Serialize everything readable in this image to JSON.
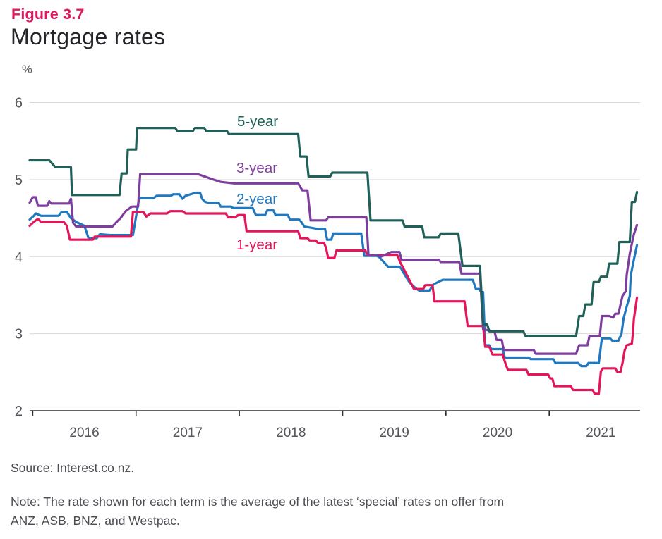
{
  "figure_label": "Figure 3.7",
  "title": "Mortgage rates",
  "y_axis_unit": "%",
  "source": "Source: Interest.co.nz.",
  "note_lines": [
    "Note: The rate shown for each term is the average of the latest ‘special’ rates on offer from",
    "ANZ, ASB, BNZ, and Westpac."
  ],
  "colors": {
    "accent_pink": "#e0175f",
    "title_dark": "#26242b",
    "axis_text": "#55555b",
    "axis_line": "#2e2e33",
    "gridline": "#dadada"
  },
  "chart_data": {
    "type": "line",
    "title": "Mortgage rates",
    "xlabel": "",
    "ylabel": "%",
    "grid": "horizontal",
    "legend_position": "inline-labels",
    "xlim": [
      2015.97,
      2021.88
    ],
    "ylim": [
      2,
      6
    ],
    "x_ticks": [
      2016,
      2017,
      2018,
      2019,
      2020,
      2021
    ],
    "x_tick_labels": [
      "2016",
      "2017",
      "2018",
      "2019",
      "2020",
      "2021"
    ],
    "y_ticks": [
      2,
      3,
      4,
      5,
      6
    ],
    "series": [
      {
        "name": "2-year",
        "color": "#2079c0",
        "points": [
          [
            2015.97,
            4.48
          ],
          [
            2016.01,
            4.53
          ],
          [
            2016.03,
            4.56
          ],
          [
            2016.08,
            4.53
          ],
          [
            2016.25,
            4.53
          ],
          [
            2016.28,
            4.58
          ],
          [
            2016.33,
            4.58
          ],
          [
            2016.37,
            4.5
          ],
          [
            2016.42,
            4.45
          ],
          [
            2016.5,
            4.4
          ],
          [
            2016.54,
            4.24
          ],
          [
            2016.62,
            4.24
          ],
          [
            2016.65,
            4.29
          ],
          [
            2016.75,
            4.28
          ],
          [
            2016.97,
            4.28
          ],
          [
            2017.03,
            4.76
          ],
          [
            2017.17,
            4.76
          ],
          [
            2017.2,
            4.79
          ],
          [
            2017.34,
            4.79
          ],
          [
            2017.36,
            4.81
          ],
          [
            2017.42,
            4.81
          ],
          [
            2017.45,
            4.75
          ],
          [
            2017.48,
            4.79
          ],
          [
            2017.58,
            4.83
          ],
          [
            2017.62,
            4.83
          ],
          [
            2017.64,
            4.75
          ],
          [
            2017.67,
            4.71
          ],
          [
            2017.7,
            4.7
          ],
          [
            2017.8,
            4.7
          ],
          [
            2017.82,
            4.65
          ],
          [
            2017.92,
            4.65
          ],
          [
            2017.94,
            4.63
          ],
          [
            2018.13,
            4.63
          ],
          [
            2018.16,
            4.54
          ],
          [
            2018.25,
            4.54
          ],
          [
            2018.27,
            4.6
          ],
          [
            2018.33,
            4.6
          ],
          [
            2018.35,
            4.54
          ],
          [
            2018.47,
            4.54
          ],
          [
            2018.49,
            4.48
          ],
          [
            2018.58,
            4.48
          ],
          [
            2018.6,
            4.45
          ],
          [
            2018.63,
            4.39
          ],
          [
            2018.76,
            4.36
          ],
          [
            2018.83,
            4.36
          ],
          [
            2018.85,
            4.22
          ],
          [
            2018.89,
            4.22
          ],
          [
            2018.91,
            4.3
          ],
          [
            2019.18,
            4.3
          ],
          [
            2019.21,
            4.01
          ],
          [
            2019.33,
            4.01
          ],
          [
            2019.35,
            4.0
          ],
          [
            2019.44,
            3.87
          ],
          [
            2019.55,
            3.87
          ],
          [
            2019.57,
            3.84
          ],
          [
            2019.58,
            3.81
          ],
          [
            2019.65,
            3.66
          ],
          [
            2019.7,
            3.6
          ],
          [
            2019.74,
            3.56
          ],
          [
            2019.84,
            3.56
          ],
          [
            2019.88,
            3.64
          ],
          [
            2019.97,
            3.7
          ],
          [
            2020.26,
            3.7
          ],
          [
            2020.29,
            3.58
          ],
          [
            2020.32,
            3.58
          ],
          [
            2020.34,
            3.54
          ],
          [
            2020.36,
            3.54
          ],
          [
            2020.38,
            2.85
          ],
          [
            2020.42,
            2.85
          ],
          [
            2020.44,
            2.8
          ],
          [
            2020.55,
            2.8
          ],
          [
            2020.57,
            2.69
          ],
          [
            2020.8,
            2.69
          ],
          [
            2020.82,
            2.67
          ],
          [
            2021.04,
            2.67
          ],
          [
            2021.06,
            2.62
          ],
          [
            2021.28,
            2.62
          ],
          [
            2021.31,
            2.58
          ],
          [
            2021.36,
            2.58
          ],
          [
            2021.38,
            2.62
          ],
          [
            2021.48,
            2.62
          ],
          [
            2021.51,
            2.94
          ],
          [
            2021.59,
            2.94
          ],
          [
            2021.61,
            2.91
          ],
          [
            2021.67,
            2.91
          ],
          [
            2021.7,
            3.0
          ],
          [
            2021.72,
            3.2
          ],
          [
            2021.75,
            3.35
          ],
          [
            2021.78,
            3.49
          ],
          [
            2021.79,
            3.76
          ],
          [
            2021.82,
            3.96
          ],
          [
            2021.85,
            4.15
          ]
        ]
      },
      {
        "name": "1-year",
        "color": "#e41659",
        "points": [
          [
            2015.97,
            4.4
          ],
          [
            2016.01,
            4.45
          ],
          [
            2016.05,
            4.49
          ],
          [
            2016.08,
            4.45
          ],
          [
            2016.3,
            4.45
          ],
          [
            2016.33,
            4.4
          ],
          [
            2016.36,
            4.22
          ],
          [
            2016.58,
            4.22
          ],
          [
            2016.6,
            4.26
          ],
          [
            2016.95,
            4.26
          ],
          [
            2016.97,
            4.58
          ],
          [
            2017.07,
            4.58
          ],
          [
            2017.1,
            4.52
          ],
          [
            2017.14,
            4.56
          ],
          [
            2017.3,
            4.56
          ],
          [
            2017.33,
            4.59
          ],
          [
            2017.45,
            4.59
          ],
          [
            2017.48,
            4.56
          ],
          [
            2017.87,
            4.56
          ],
          [
            2017.89,
            4.51
          ],
          [
            2017.96,
            4.51
          ],
          [
            2017.99,
            4.54
          ],
          [
            2018.05,
            4.54
          ],
          [
            2018.07,
            4.33
          ],
          [
            2018.57,
            4.33
          ],
          [
            2018.59,
            4.24
          ],
          [
            2018.66,
            4.24
          ],
          [
            2018.68,
            4.21
          ],
          [
            2018.74,
            4.21
          ],
          [
            2018.76,
            4.18
          ],
          [
            2018.82,
            4.18
          ],
          [
            2018.84,
            4.11
          ],
          [
            2018.86,
            3.98
          ],
          [
            2018.92,
            3.98
          ],
          [
            2018.94,
            4.08
          ],
          [
            2019.22,
            4.08
          ],
          [
            2019.24,
            4.02
          ],
          [
            2019.53,
            4.02
          ],
          [
            2019.56,
            3.92
          ],
          [
            2019.58,
            3.87
          ],
          [
            2019.63,
            3.74
          ],
          [
            2019.69,
            3.58
          ],
          [
            2019.78,
            3.58
          ],
          [
            2019.8,
            3.63
          ],
          [
            2019.87,
            3.63
          ],
          [
            2019.89,
            3.42
          ],
          [
            2020.18,
            3.42
          ],
          [
            2020.21,
            3.1
          ],
          [
            2020.36,
            3.1
          ],
          [
            2020.38,
            2.83
          ],
          [
            2020.42,
            2.83
          ],
          [
            2020.45,
            2.73
          ],
          [
            2020.55,
            2.73
          ],
          [
            2020.57,
            2.64
          ],
          [
            2020.58,
            2.6
          ],
          [
            2020.6,
            2.53
          ],
          [
            2020.78,
            2.53
          ],
          [
            2020.8,
            2.47
          ],
          [
            2020.99,
            2.47
          ],
          [
            2021.01,
            2.42
          ],
          [
            2021.03,
            2.42
          ],
          [
            2021.05,
            2.32
          ],
          [
            2021.21,
            2.32
          ],
          [
            2021.23,
            2.27
          ],
          [
            2021.42,
            2.27
          ],
          [
            2021.44,
            2.22
          ],
          [
            2021.48,
            2.22
          ],
          [
            2021.5,
            2.51
          ],
          [
            2021.52,
            2.55
          ],
          [
            2021.64,
            2.55
          ],
          [
            2021.66,
            2.5
          ],
          [
            2021.69,
            2.5
          ],
          [
            2021.71,
            2.62
          ],
          [
            2021.73,
            2.78
          ],
          [
            2021.75,
            2.85
          ],
          [
            2021.8,
            2.87
          ],
          [
            2021.81,
            3.0
          ],
          [
            2021.82,
            3.19
          ],
          [
            2021.85,
            3.47
          ]
        ]
      },
      {
        "name": "3-year",
        "color": "#7d3e9e",
        "points": [
          [
            2015.97,
            4.7
          ],
          [
            2016.0,
            4.77
          ],
          [
            2016.03,
            4.77
          ],
          [
            2016.05,
            4.66
          ],
          [
            2016.14,
            4.66
          ],
          [
            2016.16,
            4.72
          ],
          [
            2016.18,
            4.69
          ],
          [
            2016.35,
            4.69
          ],
          [
            2016.37,
            4.75
          ],
          [
            2016.39,
            4.44
          ],
          [
            2016.42,
            4.39
          ],
          [
            2016.77,
            4.39
          ],
          [
            2016.82,
            4.46
          ],
          [
            2016.85,
            4.5
          ],
          [
            2016.9,
            4.59
          ],
          [
            2016.96,
            4.65
          ],
          [
            2017.02,
            4.65
          ],
          [
            2017.04,
            5.07
          ],
          [
            2017.6,
            5.07
          ],
          [
            2017.75,
            5.0
          ],
          [
            2017.82,
            4.97
          ],
          [
            2017.95,
            4.95
          ],
          [
            2018.57,
            4.95
          ],
          [
            2018.61,
            4.86
          ],
          [
            2018.66,
            4.86
          ],
          [
            2018.69,
            4.47
          ],
          [
            2018.84,
            4.47
          ],
          [
            2018.86,
            4.51
          ],
          [
            2019.23,
            4.51
          ],
          [
            2019.25,
            4.02
          ],
          [
            2019.35,
            4.02
          ],
          [
            2019.37,
            4.0
          ],
          [
            2019.47,
            4.06
          ],
          [
            2019.55,
            4.06
          ],
          [
            2019.57,
            3.96
          ],
          [
            2019.93,
            3.96
          ],
          [
            2019.95,
            3.93
          ],
          [
            2020.13,
            3.93
          ],
          [
            2020.15,
            3.78
          ],
          [
            2020.33,
            3.78
          ],
          [
            2020.36,
            3.06
          ],
          [
            2020.45,
            3.03
          ],
          [
            2020.47,
            3.03
          ],
          [
            2020.49,
            2.92
          ],
          [
            2020.54,
            2.92
          ],
          [
            2020.56,
            2.79
          ],
          [
            2020.85,
            2.79
          ],
          [
            2020.87,
            2.74
          ],
          [
            2021.26,
            2.74
          ],
          [
            2021.29,
            2.85
          ],
          [
            2021.37,
            2.85
          ],
          [
            2021.39,
            2.97
          ],
          [
            2021.49,
            2.97
          ],
          [
            2021.51,
            3.23
          ],
          [
            2021.58,
            3.23
          ],
          [
            2021.62,
            3.21
          ],
          [
            2021.64,
            3.26
          ],
          [
            2021.67,
            3.26
          ],
          [
            2021.71,
            3.49
          ],
          [
            2021.74,
            3.55
          ],
          [
            2021.75,
            3.76
          ],
          [
            2021.78,
            4.04
          ],
          [
            2021.82,
            4.29
          ],
          [
            2021.85,
            4.41
          ]
        ]
      },
      {
        "name": "5-year",
        "color": "#1f6158",
        "points": [
          [
            2015.97,
            5.25
          ],
          [
            2016.16,
            5.25
          ],
          [
            2016.22,
            5.16
          ],
          [
            2016.37,
            5.16
          ],
          [
            2016.38,
            4.8
          ],
          [
            2016.84,
            4.8
          ],
          [
            2016.86,
            5.08
          ],
          [
            2016.91,
            5.08
          ],
          [
            2016.92,
            5.39
          ],
          [
            2017.0,
            5.39
          ],
          [
            2017.01,
            5.67
          ],
          [
            2017.38,
            5.67
          ],
          [
            2017.4,
            5.63
          ],
          [
            2017.55,
            5.63
          ],
          [
            2017.57,
            5.67
          ],
          [
            2017.66,
            5.67
          ],
          [
            2017.68,
            5.63
          ],
          [
            2017.88,
            5.63
          ],
          [
            2017.9,
            5.59
          ],
          [
            2018.57,
            5.59
          ],
          [
            2018.59,
            5.3
          ],
          [
            2018.65,
            5.3
          ],
          [
            2018.67,
            5.04
          ],
          [
            2018.88,
            5.04
          ],
          [
            2018.9,
            5.09
          ],
          [
            2019.24,
            5.09
          ],
          [
            2019.27,
            4.47
          ],
          [
            2019.58,
            4.47
          ],
          [
            2019.6,
            4.39
          ],
          [
            2019.77,
            4.39
          ],
          [
            2019.79,
            4.25
          ],
          [
            2019.93,
            4.25
          ],
          [
            2019.95,
            4.3
          ],
          [
            2020.12,
            4.3
          ],
          [
            2020.16,
            3.88
          ],
          [
            2020.33,
            3.88
          ],
          [
            2020.36,
            3.12
          ],
          [
            2020.4,
            3.12
          ],
          [
            2020.42,
            3.03
          ],
          [
            2020.75,
            3.03
          ],
          [
            2020.77,
            2.97
          ],
          [
            2021.26,
            2.97
          ],
          [
            2021.29,
            3.23
          ],
          [
            2021.33,
            3.23
          ],
          [
            2021.35,
            3.38
          ],
          [
            2021.41,
            3.38
          ],
          [
            2021.43,
            3.67
          ],
          [
            2021.48,
            3.67
          ],
          [
            2021.5,
            3.74
          ],
          [
            2021.56,
            3.74
          ],
          [
            2021.58,
            3.91
          ],
          [
            2021.66,
            3.91
          ],
          [
            2021.68,
            4.19
          ],
          [
            2021.78,
            4.19
          ],
          [
            2021.8,
            4.71
          ],
          [
            2021.83,
            4.71
          ],
          [
            2021.85,
            4.84
          ]
        ]
      }
    ]
  }
}
